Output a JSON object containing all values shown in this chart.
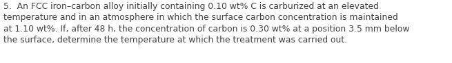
{
  "text_line1": "5.  An FCC iron–carbon alloy initially containing 0.10 wt% C is carburized at an elevated",
  "text_line2": "temperature and in an atmosphere in which the surface carbon concentration is maintained",
  "text_line3": "at 1.10 wt%. If, after 48 h, the concentration of carbon is 0.30 wt% at a position 3.5 mm below",
  "text_line4": "the surface, determine the temperature at which the treatment was carried out.",
  "font_size": 8.9,
  "font_color": "#404040",
  "background_color": "#ffffff",
  "fig_width": 6.55,
  "fig_height": 0.92,
  "dpi": 100
}
